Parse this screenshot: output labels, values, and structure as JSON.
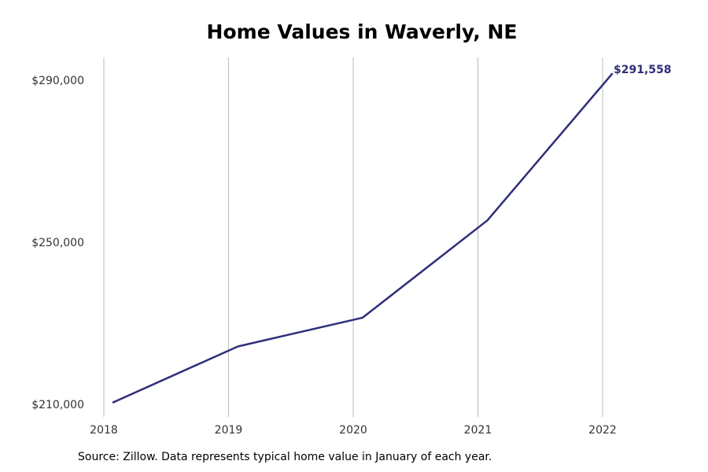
{
  "chart_data": {
    "type": "line",
    "title": "Home Values in Waverly, NE",
    "x": [
      2018,
      2019,
      2020,
      2021,
      2022
    ],
    "x_tick_labels": [
      "2018",
      "2019",
      "2020",
      "2021",
      "2022"
    ],
    "series": [
      {
        "values": [
          210500,
          224300,
          231400,
          255400,
          291558
        ],
        "color": "#2e2e7a"
      }
    ],
    "y_ticks": [
      210000,
      250000,
      290000
    ],
    "y_tick_labels": [
      "$210,000",
      "$250,000",
      "$290,000"
    ],
    "ylim": [
      210000,
      291558
    ],
    "end_label": "$291,558",
    "grid": "vertical",
    "xlabel": "",
    "ylabel": ""
  },
  "source_note": "Source: Zillow. Data represents typical home value in January of each year.",
  "colors": {
    "line": "#2e2e7a",
    "grid": "#bbbbbb",
    "tick_text": "#333333"
  }
}
